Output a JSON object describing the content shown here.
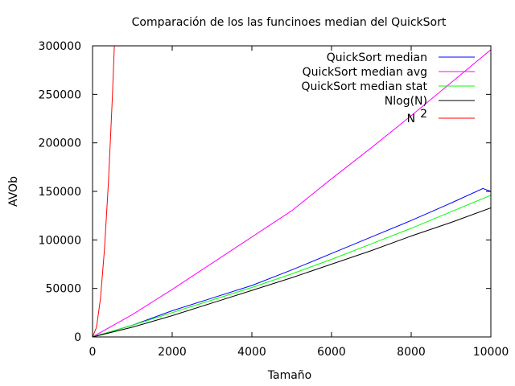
{
  "chart_data": {
    "type": "line",
    "title": "Comparación de los las funcinoes median del QuickSort",
    "xlabel": "Tamaño",
    "ylabel": "AVOb",
    "xlim": [
      0,
      10000
    ],
    "ylim": [
      0,
      300000
    ],
    "xticks": [
      0,
      2000,
      4000,
      6000,
      8000,
      10000
    ],
    "yticks": [
      0,
      50000,
      100000,
      150000,
      200000,
      250000,
      300000
    ],
    "grid": false,
    "legend_position": "top-right",
    "series": [
      {
        "name": "QuickSort median",
        "color": "#0000ff",
        "x": [
          0,
          1000,
          2000,
          3000,
          4000,
          5000,
          6000,
          7000,
          8000,
          9000,
          9800,
          10000
        ],
        "y": [
          0,
          12000,
          27000,
          40000,
          53000,
          69000,
          86000,
          103000,
          120000,
          138000,
          153000,
          150000
        ]
      },
      {
        "name": "QuickSort median avg",
        "color": "#ff00ff",
        "x": [
          0,
          1000,
          2000,
          3000,
          4000,
          5000,
          6000,
          7000,
          8000,
          9000,
          10000
        ],
        "y": [
          0,
          23000,
          49000,
          76000,
          103000,
          130000,
          163000,
          195000,
          228000,
          262000,
          296000
        ]
      },
      {
        "name": "QuickSort median stat",
        "color": "#00ff00",
        "x": [
          0,
          1000,
          2000,
          3000,
          4000,
          5000,
          6000,
          7000,
          8000,
          9000,
          10000
        ],
        "y": [
          0,
          12000,
          25000,
          38000,
          51000,
          65000,
          80000,
          96000,
          112000,
          129000,
          146000
        ]
      },
      {
        "name": "Nlog(N)",
        "color": "#000000",
        "x": [
          0,
          1000,
          2000,
          3000,
          4000,
          5000,
          6000,
          7000,
          8000,
          9000,
          10000
        ],
        "y": [
          0,
          10000,
          22000,
          35000,
          48000,
          61000,
          75000,
          89000,
          104000,
          118000,
          133000
        ]
      },
      {
        "name": "N",
        "name_superscript": "2",
        "color": "#ff0000",
        "x": [
          0,
          100,
          200,
          300,
          400,
          500,
          548
        ],
        "y": [
          0,
          10000,
          40000,
          90000,
          160000,
          250000,
          300000
        ]
      }
    ]
  }
}
